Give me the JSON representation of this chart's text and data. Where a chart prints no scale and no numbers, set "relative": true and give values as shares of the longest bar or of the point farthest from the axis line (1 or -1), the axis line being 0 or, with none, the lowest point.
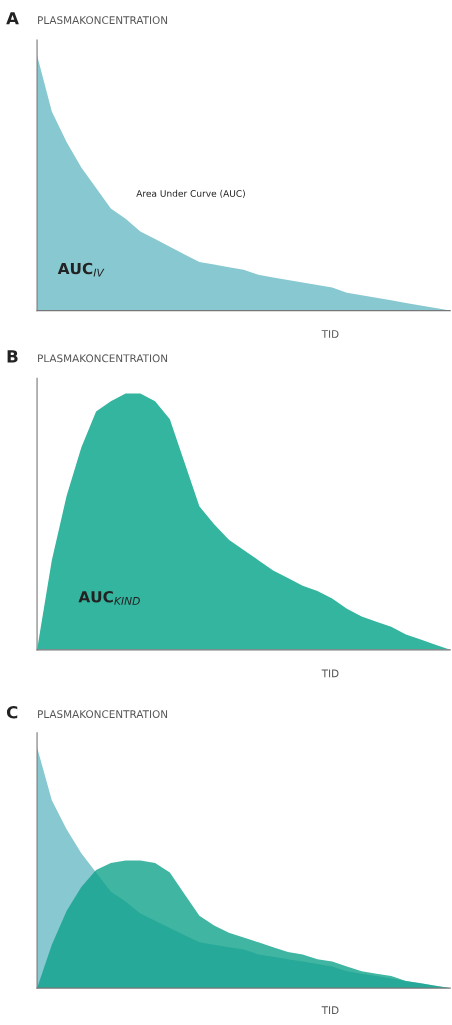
{
  "chart_data": [
    {
      "type": "area",
      "title": "A",
      "ylabel": "PLASMAKONCENTRATION",
      "xlabel": "TID",
      "relative": true,
      "categories": [
        null,
        null,
        null,
        null,
        null,
        null,
        null,
        null,
        null,
        null,
        null,
        null,
        null,
        null,
        null,
        null,
        null,
        null,
        null,
        null,
        null,
        null,
        null,
        null,
        null,
        null,
        null,
        null,
        null
      ],
      "series": [
        {
          "color": "#88c8d0",
          "values": [
            1,
            0.78,
            0.66,
            0.56,
            0.48,
            0.4,
            0.36,
            0.31,
            0.28,
            0.25,
            0.22,
            0.19,
            0.18,
            0.17,
            0.16,
            0.14,
            0.13,
            0.12,
            0.11,
            0.1,
            0.09,
            0.07,
            0.06,
            0.05,
            0.04,
            0.03,
            0.02,
            0.01,
            0
          ]
        }
      ],
      "annotations": [
        "Area Under Curve (AUC)",
        "AUC$_{IV}$"
      ]
    },
    {
      "type": "area",
      "title": "B",
      "ylabel": "PLASMAKONCENTRATION",
      "xlabel": "TID",
      "relative": true,
      "categories": [
        null,
        null,
        null,
        null,
        null,
        null,
        null,
        null,
        null,
        null,
        null,
        null,
        null,
        null,
        null,
        null,
        null,
        null,
        null,
        null,
        null,
        null,
        null,
        null,
        null,
        null,
        null,
        null,
        null
      ],
      "series": [
        {
          "color": "#34b59f",
          "values": [
            0,
            0.35,
            0.6,
            0.79,
            0.93,
            0.97,
            1,
            1,
            0.97,
            0.9,
            0.73,
            0.56,
            0.49,
            0.43,
            0.39,
            0.35,
            0.31,
            0.28,
            0.25,
            0.23,
            0.2,
            0.16,
            0.13,
            0.11,
            0.09,
            0.06,
            0.04,
            0.02,
            0
          ]
        }
      ],
      "annotations": [
        "AUC$_{KIND}$"
      ]
    },
    {
      "type": "area",
      "title": "C",
      "ylabel": "PLASMAKONCENTRATION",
      "xlabel": "TID",
      "relative": true,
      "categories": [
        null,
        null,
        null,
        null,
        null,
        null,
        null,
        null,
        null,
        null,
        null,
        null,
        null,
        null,
        null,
        null,
        null,
        null,
        null,
        null,
        null,
        null,
        null,
        null,
        null,
        null,
        null,
        null,
        null
      ],
      "series": [
        {
          "color": "#88c8d0",
          "values": [
            1,
            0.78,
            0.66,
            0.56,
            0.48,
            0.4,
            0.36,
            0.31,
            0.28,
            0.25,
            0.22,
            0.19,
            0.18,
            0.17,
            0.16,
            0.14,
            0.13,
            0.12,
            0.11,
            0.1,
            0.09,
            0.07,
            0.06,
            0.05,
            0.04,
            0.03,
            0.02,
            0.01,
            0
          ]
        },
        {
          "color": "#0aa088",
          "values": [
            0,
            0.18,
            0.32,
            0.42,
            0.49,
            0.52,
            0.53,
            0.53,
            0.52,
            0.48,
            0.39,
            0.3,
            0.26,
            0.23,
            0.21,
            0.19,
            0.17,
            0.15,
            0.14,
            0.12,
            0.11,
            0.09,
            0.07,
            0.06,
            0.05,
            0.03,
            0.02,
            0.01,
            0
          ]
        }
      ]
    }
  ]
}
